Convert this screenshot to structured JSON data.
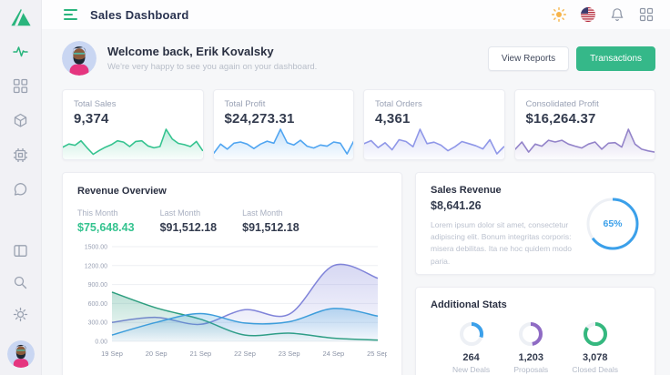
{
  "colors": {
    "accent_teal": "#2ab57d",
    "button_green": "#35b889",
    "spark_green": "#34c38f",
    "spark_blue": "#50a5f1",
    "spark_periwinkle": "#8f97e8",
    "spark_purple": "#9383c9",
    "donut_blue": "#3ba0ea",
    "donut_purple": "#8f6bc4",
    "donut_green": "#35b87f",
    "navy_text": "#2a3042",
    "muted_text": "#9aa2b5"
  },
  "sidebar": {
    "icons": [
      "logo",
      "activity-icon",
      "dashboard-grid-icon",
      "cube-icon",
      "cpu-icon",
      "chat-icon",
      "layout-icon",
      "search-icon",
      "settings-icon",
      "user-avatar"
    ],
    "active_icon": "activity-icon"
  },
  "header": {
    "title": "Sales Dashboard",
    "icons": [
      "menu-icon",
      "sun-icon",
      "us-flag-icon",
      "bell-icon",
      "apps-icon"
    ]
  },
  "welcome": {
    "title": "Welcome back, Erik Kovalsky",
    "subtitle": "We're very happy to see you again on your dashboard.",
    "view_reports_label": "View Reports",
    "transactions_label": "Transactions"
  },
  "stat_cards": [
    {
      "label": "Total Sales",
      "value": "9,374"
    },
    {
      "label": "Total Profit",
      "value": "$24,273.31"
    },
    {
      "label": "Total Orders",
      "value": "4,361"
    },
    {
      "label": "Consolidated Profit",
      "value": "$16,264.37"
    }
  ],
  "revenue_overview": {
    "title": "Revenue Overview",
    "stats": [
      {
        "label": "This Month",
        "value": "$75,648.43"
      },
      {
        "label": "Last Month",
        "value": "$91,512.18"
      },
      {
        "label": "Last Month",
        "value": "$91,512.18"
      }
    ]
  },
  "sales_revenue": {
    "title": "Sales Revenue",
    "value": "$8,641.26",
    "description": "Lorem ipsum dolor sit amet, consectetur adipiscing elit. Bonum integritas corporis: misera debilitas. Ita ne hoc quidem modo paria.",
    "gauge_label": "65%"
  },
  "additional_stats": {
    "title": "Additional Stats",
    "items": [
      {
        "value": "264",
        "label": "New Deals"
      },
      {
        "value": "1,203",
        "label": "Proposals"
      },
      {
        "value": "3,078",
        "label": "Closed Deals"
      }
    ]
  },
  "chart_data": [
    {
      "type": "area",
      "name": "total-sales-sparkline",
      "color": "#34c38f",
      "values": [
        32,
        42,
        38,
        52,
        30,
        10,
        22,
        32,
        40,
        52,
        48,
        34,
        50,
        52,
        36,
        30,
        34,
        88,
        58,
        44,
        40,
        34,
        50,
        22
      ]
    },
    {
      "type": "area",
      "name": "total-profit-sparkline",
      "color": "#50a5f1",
      "values": [
        15,
        45,
        28,
        48,
        52,
        45,
        30,
        45,
        55,
        48,
        95,
        50,
        42,
        58,
        38,
        32,
        42,
        38,
        52,
        48,
        12,
        55
      ]
    },
    {
      "type": "area",
      "name": "total-orders-sparkline",
      "color": "#8f97e8",
      "values": [
        45,
        55,
        32,
        48,
        25,
        58,
        52,
        35,
        92,
        45,
        50,
        40,
        22,
        35,
        52,
        45,
        38,
        28,
        58,
        12,
        35
      ]
    },
    {
      "type": "area",
      "name": "consolidated-profit-sparkline",
      "color": "#9383c9",
      "values": [
        28,
        52,
        18,
        45,
        38,
        58,
        52,
        58,
        45,
        38,
        32,
        45,
        52,
        28,
        48,
        50,
        35,
        95,
        45,
        28,
        22,
        18
      ]
    },
    {
      "type": "area",
      "name": "revenue-overview",
      "title": "Revenue Overview",
      "x": [
        "19 Sep",
        "20 Sep",
        "21 Sep",
        "22 Sep",
        "23 Sep",
        "24 Sep",
        "25 Sep"
      ],
      "series": [
        {
          "name": "purple",
          "color": "#8084d9",
          "values": [
            300,
            380,
            270,
            500,
            430,
            1200,
            1000
          ]
        },
        {
          "name": "green",
          "color": "#2e9e7f",
          "values": [
            780,
            530,
            350,
            100,
            130,
            50,
            20
          ]
        },
        {
          "name": "blue",
          "color": "#3d9ddb",
          "values": [
            100,
            300,
            440,
            290,
            310,
            520,
            400
          ]
        }
      ],
      "ylim": [
        0,
        1500
      ],
      "yticks": [
        "0.00",
        "300.00",
        "600.00",
        "900.00",
        "1200.00",
        "1500.00"
      ],
      "grid": true,
      "legend": "none",
      "smooth": true
    },
    {
      "type": "donut",
      "name": "sales-revenue-gauge",
      "percent": 65,
      "label": "65%",
      "color": "#3ba0ea"
    },
    {
      "type": "donut",
      "name": "new-deals-gauge",
      "percent": 30,
      "color": "#3ba0ea"
    },
    {
      "type": "donut",
      "name": "proposals-gauge",
      "percent": 47,
      "color": "#8f6bc4"
    },
    {
      "type": "donut",
      "name": "closed-deals-gauge",
      "percent": 85,
      "color": "#35b87f"
    }
  ]
}
